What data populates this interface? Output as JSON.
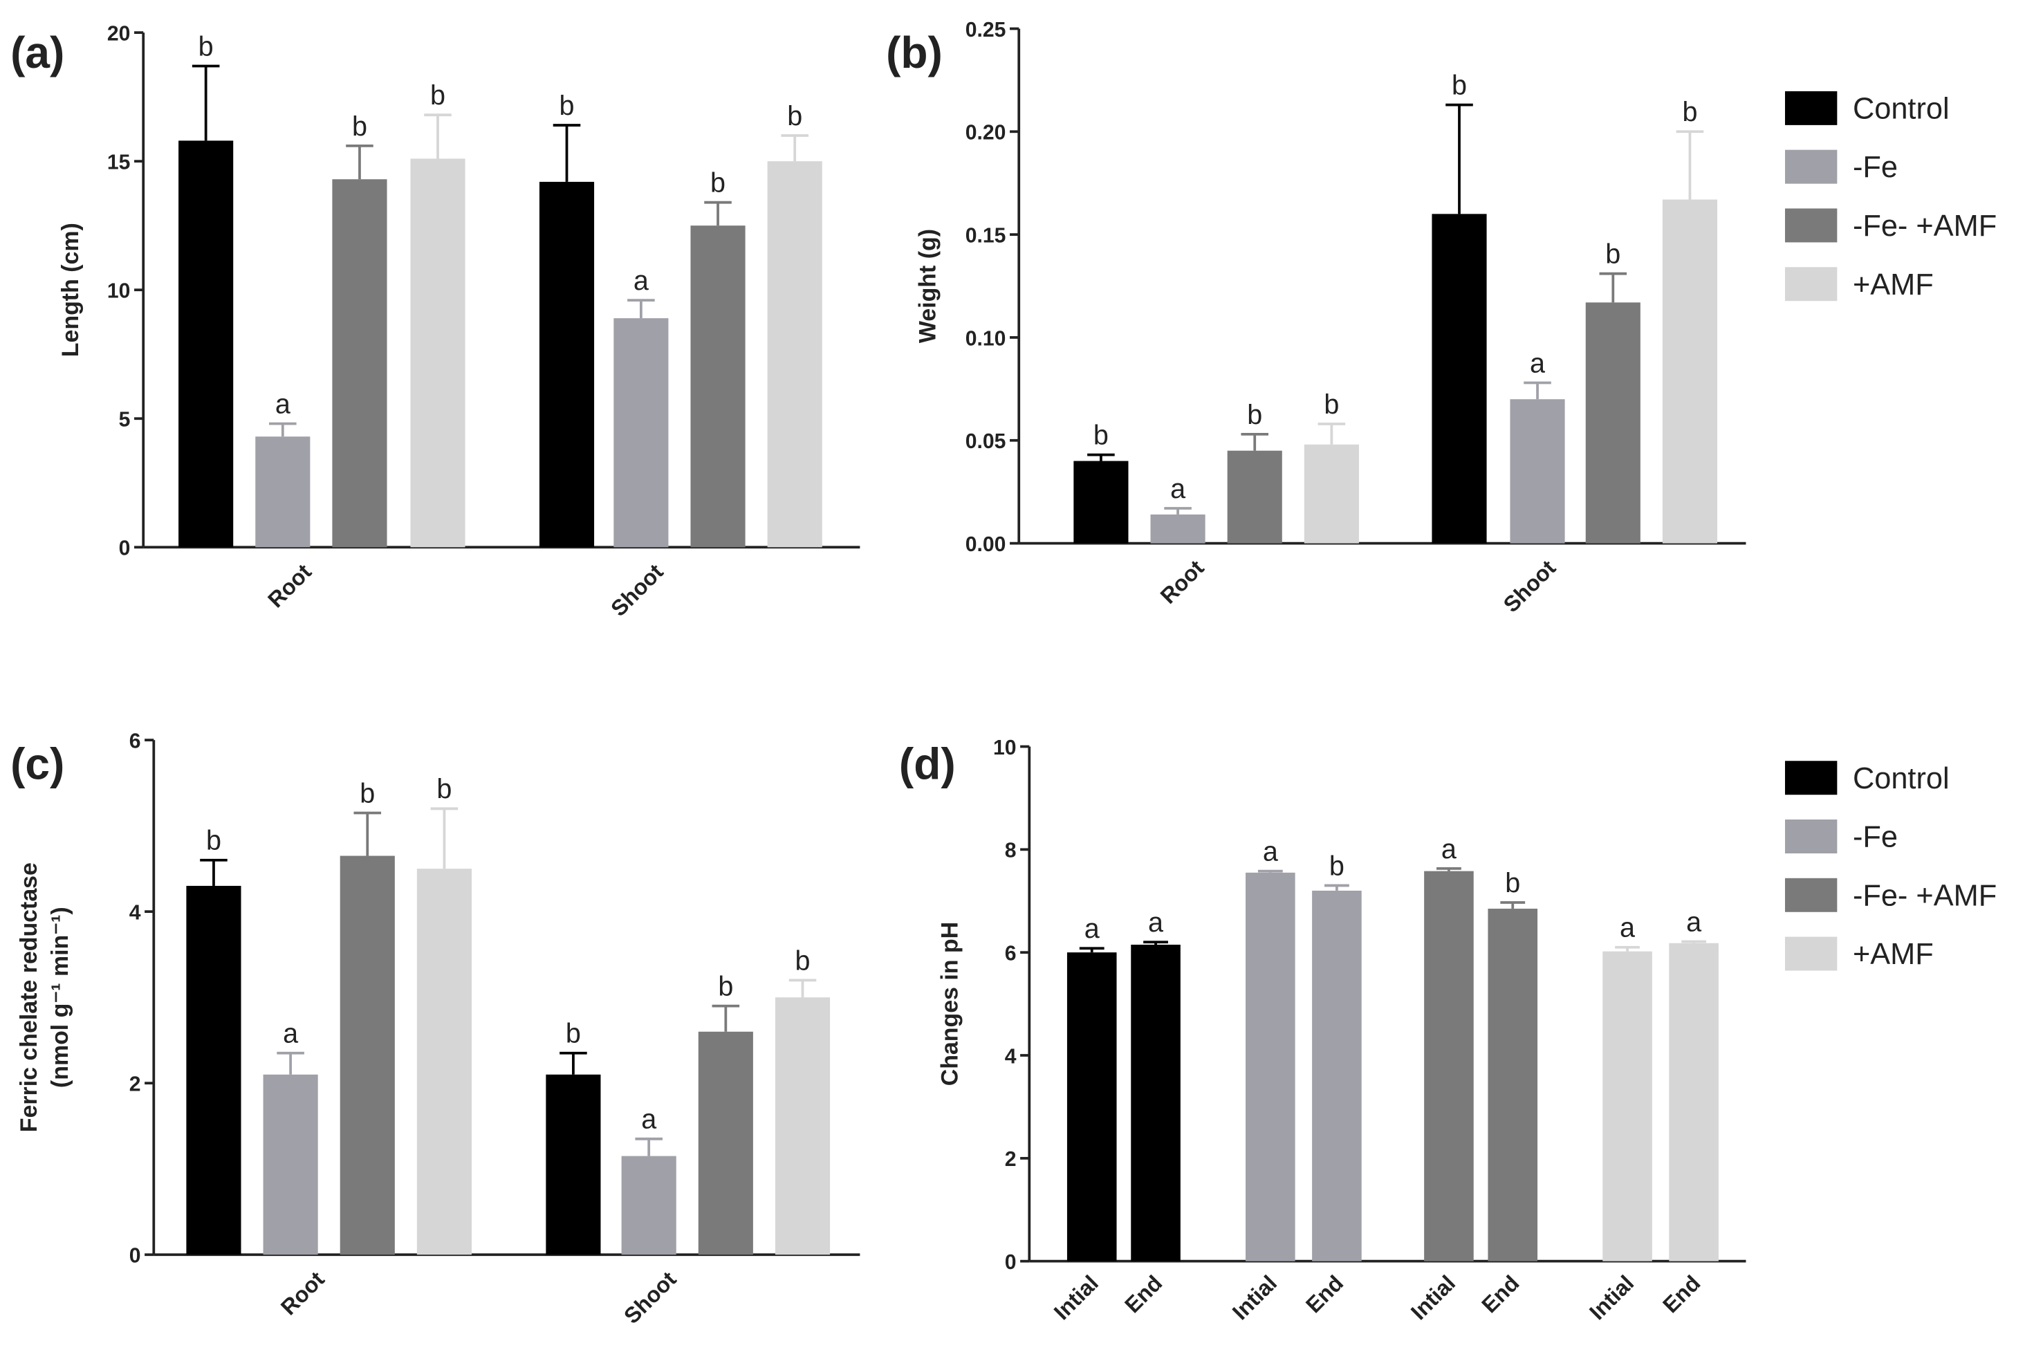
{
  "chart_data": [
    {
      "type": "bar",
      "panel": "(a)",
      "ylabel": [
        "Length (cm)"
      ],
      "categories": [
        "Root",
        "Shoot"
      ],
      "ylim": [
        0,
        20
      ],
      "yticks": [
        0,
        5,
        10,
        15,
        20
      ],
      "legend": false,
      "series": [
        {
          "name": "Control",
          "color": "#000000",
          "values": [
            15.8,
            14.2
          ],
          "errors": [
            2.9,
            2.2
          ],
          "letters": [
            "b",
            "b"
          ]
        },
        {
          "name": "-Fe",
          "color": "#a0a0a8",
          "values": [
            4.3,
            8.9
          ],
          "errors": [
            0.5,
            0.7
          ],
          "letters": [
            "a",
            "a"
          ]
        },
        {
          "name": "-Fe- +AMF",
          "color": "#7a7a7a",
          "values": [
            14.3,
            12.5
          ],
          "errors": [
            1.3,
            0.9
          ],
          "letters": [
            "b",
            "b"
          ]
        },
        {
          "name": "+AMF",
          "color": "#d6d6d6",
          "values": [
            15.1,
            15.0
          ],
          "errors": [
            1.7,
            1.0
          ],
          "letters": [
            "b",
            "b"
          ]
        }
      ]
    },
    {
      "type": "bar",
      "panel": "(b)",
      "ylabel": [
        "Weight (g)"
      ],
      "categories": [
        "Root",
        "Shoot"
      ],
      "ylim": [
        0,
        0.25
      ],
      "yticks": [
        {
          "value": 0,
          "label": "0.00"
        },
        {
          "value": 0.05,
          "label": "0.05"
        },
        {
          "value": 0.1,
          "label": "0.10"
        },
        {
          "value": 0.15,
          "label": "0.15"
        },
        {
          "value": 0.2,
          "label": "0.20"
        },
        {
          "value": 0.25,
          "label": "0.25"
        }
      ],
      "legend": true,
      "series": [
        {
          "name": "Control",
          "color": "#000000",
          "values": [
            0.04,
            0.16
          ],
          "errors": [
            0.003,
            0.053
          ],
          "letters": [
            "b",
            "b"
          ]
        },
        {
          "name": "-Fe",
          "color": "#a0a0a8",
          "values": [
            0.014,
            0.07
          ],
          "errors": [
            0.003,
            0.008
          ],
          "letters": [
            "a",
            "a"
          ]
        },
        {
          "name": "-Fe- +AMF",
          "color": "#7a7a7a",
          "values": [
            0.045,
            0.117
          ],
          "errors": [
            0.008,
            0.014
          ],
          "letters": [
            "b",
            "b"
          ]
        },
        {
          "name": "+AMF",
          "color": "#d6d6d6",
          "values": [
            0.048,
            0.167
          ],
          "errors": [
            0.01,
            0.033
          ],
          "letters": [
            "b",
            "b"
          ]
        }
      ]
    },
    {
      "type": "bar",
      "panel": "(c)",
      "ylabel": [
        "Ferric chelate reductase",
        "(nmol g⁻¹ min⁻¹)"
      ],
      "categories": [
        "Root",
        "Shoot"
      ],
      "ylim": [
        0,
        6
      ],
      "yticks": [
        0,
        2,
        4,
        6
      ],
      "legend": false,
      "series": [
        {
          "name": "Control",
          "color": "#000000",
          "values": [
            4.3,
            2.1
          ],
          "errors": [
            0.3,
            0.25
          ],
          "letters": [
            "b",
            "b"
          ]
        },
        {
          "name": "-Fe",
          "color": "#a0a0a8",
          "values": [
            2.1,
            1.15
          ],
          "errors": [
            0.25,
            0.2
          ],
          "letters": [
            "a",
            "a"
          ]
        },
        {
          "name": "-Fe- +AMF",
          "color": "#7a7a7a",
          "values": [
            4.65,
            2.6
          ],
          "errors": [
            0.5,
            0.3
          ],
          "letters": [
            "b",
            "b"
          ]
        },
        {
          "name": "+AMF",
          "color": "#d6d6d6",
          "values": [
            4.5,
            3.0
          ],
          "errors": [
            0.7,
            0.2
          ],
          "letters": [
            "b",
            "b"
          ]
        }
      ]
    },
    {
      "type": "bar",
      "panel": "(d)",
      "ylabel": [
        "Changes in pH"
      ],
      "categories": [
        "Intial",
        "End"
      ],
      "ylim": [
        0,
        10
      ],
      "yticks": [
        0,
        2,
        4,
        6,
        8,
        10
      ],
      "legend": true,
      "series": [
        {
          "name": "Control",
          "color": "#000000",
          "values": [
            6.0,
            6.15
          ],
          "errors": [
            0.08,
            0.05
          ],
          "letters": [
            "a",
            "a"
          ]
        },
        {
          "name": "-Fe",
          "color": "#a0a0a8",
          "values": [
            7.55,
            7.2
          ],
          "errors": [
            0.03,
            0.1
          ],
          "letters": [
            "a",
            "b"
          ]
        },
        {
          "name": "-Fe- +AMF",
          "color": "#7a7a7a",
          "values": [
            7.58,
            6.85
          ],
          "errors": [
            0.05,
            0.12
          ],
          "letters": [
            "a",
            "b"
          ]
        },
        {
          "name": "+AMF",
          "color": "#d6d6d6",
          "values": [
            6.02,
            6.18
          ],
          "errors": [
            0.08,
            0.03
          ],
          "letters": [
            "a",
            "a"
          ]
        }
      ]
    }
  ]
}
